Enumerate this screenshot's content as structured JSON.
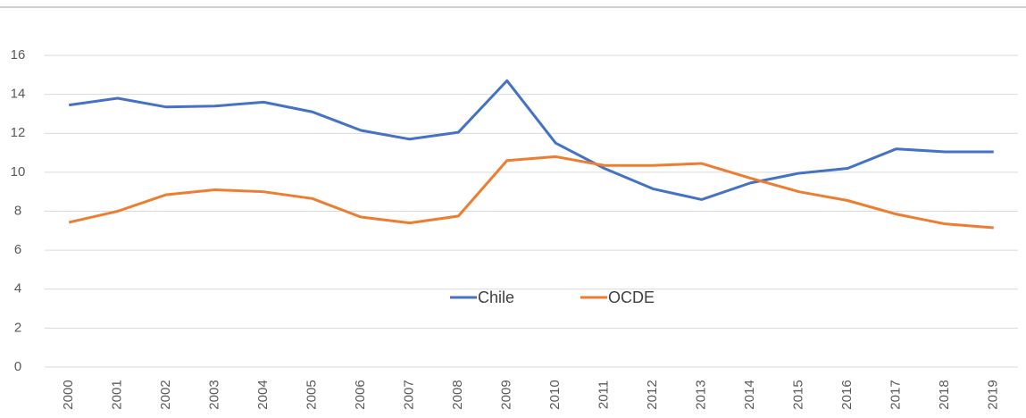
{
  "chart_data": {
    "type": "line",
    "categories": [
      "2000",
      "2001",
      "2002",
      "2003",
      "2004",
      "2005",
      "2006",
      "2007",
      "2008",
      "2009",
      "2010",
      "2011",
      "2012",
      "2013",
      "2014",
      "2015",
      "2016",
      "2017",
      "2018",
      "2019"
    ],
    "series": [
      {
        "name": "Chile",
        "color": "#4472c4",
        "values": [
          13.45,
          13.8,
          13.35,
          13.4,
          13.6,
          13.1,
          12.15,
          11.7,
          12.05,
          14.7,
          11.5,
          10.2,
          9.15,
          8.6,
          9.45,
          9.95,
          10.2,
          11.2,
          11.05,
          11.05
        ]
      },
      {
        "name": "OCDE",
        "color": "#ed7d31",
        "values": [
          7.43,
          8.0,
          8.85,
          9.1,
          9.0,
          8.65,
          7.7,
          7.4,
          7.75,
          10.6,
          10.8,
          10.35,
          10.35,
          10.45,
          9.7,
          9.0,
          8.55,
          7.85,
          7.35,
          7.15
        ]
      }
    ],
    "ylim": [
      0,
      16
    ],
    "yticks": [
      0,
      2,
      4,
      6,
      8,
      10,
      12,
      14,
      16
    ],
    "grid": true,
    "legend": "center"
  }
}
